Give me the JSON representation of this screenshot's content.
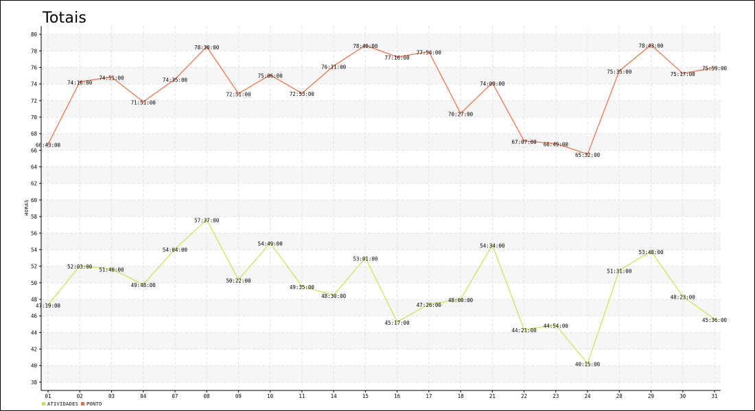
{
  "chart_data": {
    "type": "line",
    "title": "Totais",
    "xlabel": "",
    "ylabel": "HORAS",
    "ylim": [
      37,
      81
    ],
    "yticks": [
      38,
      40,
      42,
      44,
      46,
      48,
      50,
      52,
      54,
      56,
      58,
      60,
      62,
      64,
      66,
      68,
      70,
      72,
      74,
      76,
      78,
      80
    ],
    "grid": true,
    "legend_position": "bottom-left",
    "categories": [
      "01",
      "02",
      "03",
      "04",
      "07",
      "08",
      "09",
      "10",
      "11",
      "14",
      "15",
      "16",
      "17",
      "18",
      "21",
      "22",
      "23",
      "24",
      "28",
      "29",
      "30",
      "31"
    ],
    "series": [
      {
        "name": "ATIVIDADES",
        "color": "#cfe04f",
        "values": [
          47.32,
          52.05,
          51.67,
          49.8,
          54.07,
          57.62,
          50.37,
          54.82,
          49.58,
          48.5,
          53.02,
          45.28,
          47.43,
          48.0,
          54.57,
          44.35,
          44.9,
          40.25,
          51.52,
          53.8,
          48.38,
          45.6
        ],
        "labels": [
          "47:19:00",
          "52:03:00",
          "51:40:00",
          "49:48:00",
          "54:04:00",
          "57:37:00",
          "50:22:00",
          "54:49:00",
          "49:35:00",
          "48:30:00",
          "53:01:00",
          "45:17:00",
          "47:26:00",
          "48:00:00",
          "54:34:00",
          "44:21:00",
          "44:54:00",
          "40:15:00",
          "51:31:00",
          "53:48:00",
          "48:23:00",
          "45:36:00"
        ]
      },
      {
        "name": "PONTO",
        "color": "#f26c3e",
        "values": [
          66.72,
          74.27,
          74.85,
          71.85,
          74.58,
          78.5,
          72.85,
          75.1,
          72.88,
          76.18,
          78.67,
          77.27,
          77.9,
          70.45,
          74.15,
          67.12,
          66.82,
          65.53,
          75.58,
          78.72,
          75.28,
          75.98
        ],
        "labels": [
          "66:43:00",
          "74:16:00",
          "74:51:00",
          "71:51:00",
          "74:35:00",
          "78:30:00",
          "72:51:00",
          "75:06:00",
          "72:53:00",
          "76:11:00",
          "78:40:00",
          "77:16:00",
          "77:54:00",
          "70:27:00",
          "74:09:00",
          "67:07:00",
          "66:49:00",
          "65:32:00",
          "75:35:00",
          "78:43:00",
          "75:17:00",
          "75:59:00"
        ]
      }
    ]
  }
}
